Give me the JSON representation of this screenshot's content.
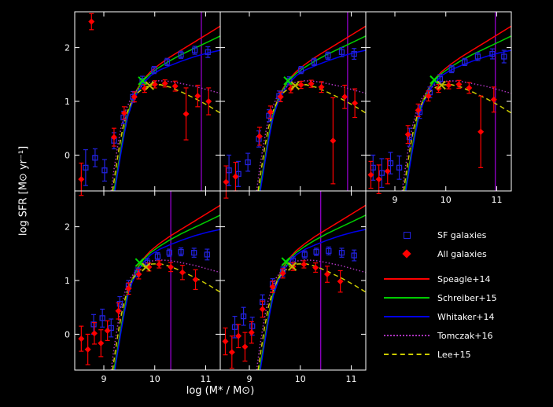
{
  "axes": {
    "xlabel": "log (M* / M⊙)",
    "ylabel": "log SFR [M⊙ yr⁻¹]"
  },
  "colors": {
    "background": "#000000",
    "axes": "#ffffff",
    "square_marker": "#2222dd",
    "diamond_marker": "#ff0000",
    "line_red": "#ff0000",
    "line_green": "#00cc00",
    "line_blue": "#0000ee",
    "line_dotted": "#aa33bb",
    "line_dashed": "#cccc00",
    "vline": "#8800bb",
    "cross_green": "#00dd00",
    "cross_yellow": "#bbbb00"
  },
  "legend": {
    "entries": [
      {
        "kind": "marker",
        "shape": "square",
        "color": "square_marker",
        "label": "SF galaxies"
      },
      {
        "kind": "marker",
        "shape": "diamond",
        "color": "diamond_marker",
        "label": "All galaxies"
      },
      {
        "kind": "line",
        "dash": "solid",
        "color": "line_red",
        "label": "Speagle+14"
      },
      {
        "kind": "line",
        "dash": "solid",
        "color": "line_green",
        "label": "Schreiber+15"
      },
      {
        "kind": "line",
        "dash": "solid",
        "color": "line_blue",
        "label": "Whitaker+14"
      },
      {
        "kind": "line",
        "dash": "dotted",
        "color": "line_dotted",
        "label": "Tomczak+16"
      },
      {
        "kind": "line",
        "dash": "dashed",
        "color": "line_dashed",
        "label": "Lee+15"
      }
    ]
  },
  "chart_data": {
    "type": "line",
    "title": "",
    "coords": "normalized panel coordinates (0-1), origin bottom-left of each panel",
    "xlabel": "log (M* / M⊙)",
    "ylabel": "log SFR [M⊙ yr⁻¹]",
    "x_ticks": [
      {
        "pos": 0.2,
        "label": "9"
      },
      {
        "pos": 0.55,
        "label": "10"
      },
      {
        "pos": 0.9,
        "label": "11"
      }
    ],
    "y_ticks": [
      {
        "pos": 0.2,
        "label": "0"
      },
      {
        "pos": 0.5,
        "label": "1"
      },
      {
        "pos": 0.8,
        "label": "2"
      }
    ],
    "model_curves": {
      "red": [
        [
          0.27,
          0.0
        ],
        [
          0.29,
          0.1
        ],
        [
          0.31,
          0.2
        ],
        [
          0.335,
          0.32
        ],
        [
          0.36,
          0.42
        ],
        [
          0.39,
          0.5
        ],
        [
          0.43,
          0.57
        ],
        [
          0.47,
          0.62
        ],
        [
          0.52,
          0.665
        ],
        [
          0.58,
          0.705
        ],
        [
          0.65,
          0.745
        ],
        [
          0.73,
          0.785
        ],
        [
          0.82,
          0.83
        ],
        [
          0.91,
          0.875
        ],
        [
          1.0,
          0.92
        ]
      ],
      "green": [
        [
          0.27,
          0.0
        ],
        [
          0.29,
          0.095
        ],
        [
          0.31,
          0.195
        ],
        [
          0.335,
          0.315
        ],
        [
          0.36,
          0.415
        ],
        [
          0.39,
          0.495
        ],
        [
          0.43,
          0.565
        ],
        [
          0.47,
          0.615
        ],
        [
          0.52,
          0.655
        ],
        [
          0.58,
          0.69
        ],
        [
          0.65,
          0.725
        ],
        [
          0.73,
          0.76
        ],
        [
          0.82,
          0.795
        ],
        [
          0.91,
          0.83
        ],
        [
          1.0,
          0.865
        ]
      ],
      "blue": [
        [
          0.275,
          0.0
        ],
        [
          0.295,
          0.1
        ],
        [
          0.315,
          0.2
        ],
        [
          0.34,
          0.315
        ],
        [
          0.365,
          0.415
        ],
        [
          0.395,
          0.49
        ],
        [
          0.435,
          0.555
        ],
        [
          0.475,
          0.605
        ],
        [
          0.525,
          0.645
        ],
        [
          0.585,
          0.675
        ],
        [
          0.655,
          0.7
        ],
        [
          0.735,
          0.725
        ],
        [
          0.825,
          0.75
        ],
        [
          0.915,
          0.77
        ],
        [
          1.0,
          0.785
        ]
      ],
      "dotted": [
        [
          0.25,
          0.0
        ],
        [
          0.27,
          0.12
        ],
        [
          0.295,
          0.25
        ],
        [
          0.32,
          0.36
        ],
        [
          0.35,
          0.45
        ],
        [
          0.385,
          0.515
        ],
        [
          0.425,
          0.56
        ],
        [
          0.47,
          0.59
        ],
        [
          0.52,
          0.608
        ],
        [
          0.58,
          0.615
        ],
        [
          0.65,
          0.612
        ],
        [
          0.73,
          0.6
        ],
        [
          0.82,
          0.585
        ],
        [
          0.91,
          0.565
        ],
        [
          1.0,
          0.545
        ]
      ],
      "dashed": [
        [
          0.26,
          0.0
        ],
        [
          0.28,
          0.11
        ],
        [
          0.305,
          0.24
        ],
        [
          0.33,
          0.35
        ],
        [
          0.36,
          0.44
        ],
        [
          0.395,
          0.505
        ],
        [
          0.435,
          0.55
        ],
        [
          0.48,
          0.578
        ],
        [
          0.53,
          0.592
        ],
        [
          0.59,
          0.593
        ],
        [
          0.66,
          0.578
        ],
        [
          0.74,
          0.55
        ],
        [
          0.83,
          0.515
        ],
        [
          0.92,
          0.475
        ],
        [
          1.0,
          0.435
        ]
      ]
    },
    "panels": [
      {
        "name": "top-left",
        "show_x_labels": false,
        "show_y_labels": true,
        "vline": 0.87,
        "cross_green": [
          0.465,
          0.615
        ],
        "cross_yellow": [
          0.515,
          0.588
        ],
        "squares": [
          [
            0.075,
            0.13,
            0.1
          ],
          [
            0.14,
            0.185,
            0.05
          ],
          [
            0.205,
            0.115,
            0.06
          ],
          [
            0.27,
            0.28,
            0.045
          ],
          [
            0.335,
            0.41,
            0.035
          ],
          [
            0.4,
            0.525,
            0.03
          ],
          [
            0.465,
            0.615,
            0.025
          ],
          [
            0.545,
            0.675,
            0.02
          ],
          [
            0.635,
            0.72,
            0.02
          ],
          [
            0.73,
            0.76,
            0.02
          ],
          [
            0.825,
            0.785,
            0.022
          ],
          [
            0.915,
            0.775,
            0.03
          ]
        ],
        "diamonds": [
          [
            0.045,
            0.065,
            0.09
          ],
          [
            0.115,
            0.945,
            0.045
          ],
          [
            0.27,
            0.3,
            0.05
          ],
          [
            0.34,
            0.435,
            0.035
          ],
          [
            0.41,
            0.525,
            0.028
          ],
          [
            0.48,
            0.572,
            0.022
          ],
          [
            0.55,
            0.595,
            0.02
          ],
          [
            0.62,
            0.6,
            0.02
          ],
          [
            0.69,
            0.585,
            0.028
          ],
          [
            0.765,
            0.43,
            0.145
          ],
          [
            0.845,
            0.53,
            0.06
          ],
          [
            0.92,
            0.5,
            0.075
          ]
        ]
      },
      {
        "name": "top-middle",
        "show_x_labels": false,
        "show_y_labels": false,
        "vline": 0.875,
        "cross_green": [
          0.465,
          0.615
        ],
        "cross_yellow": [
          0.515,
          0.588
        ],
        "squares": [
          [
            0.06,
            0.115,
            0.085
          ],
          [
            0.125,
            0.095,
            0.07
          ],
          [
            0.19,
            0.16,
            0.05
          ],
          [
            0.265,
            0.29,
            0.045
          ],
          [
            0.335,
            0.42,
            0.033
          ],
          [
            0.405,
            0.53,
            0.028
          ],
          [
            0.475,
            0.615,
            0.022
          ],
          [
            0.555,
            0.675,
            0.02
          ],
          [
            0.645,
            0.72,
            0.02
          ],
          [
            0.74,
            0.755,
            0.02
          ],
          [
            0.835,
            0.775,
            0.025
          ],
          [
            0.92,
            0.765,
            0.03
          ]
        ],
        "diamonds": [
          [
            0.04,
            0.05,
            0.09
          ],
          [
            0.105,
            0.08,
            0.08
          ],
          [
            0.27,
            0.305,
            0.05
          ],
          [
            0.345,
            0.44,
            0.034
          ],
          [
            0.415,
            0.525,
            0.027
          ],
          [
            0.485,
            0.57,
            0.022
          ],
          [
            0.555,
            0.592,
            0.02
          ],
          [
            0.625,
            0.598,
            0.02
          ],
          [
            0.695,
            0.58,
            0.03
          ],
          [
            0.775,
            0.28,
            0.24
          ],
          [
            0.855,
            0.525,
            0.065
          ],
          [
            0.925,
            0.49,
            0.08
          ]
        ]
      },
      {
        "name": "top-right",
        "show_x_labels": true,
        "show_y_labels": false,
        "vline": 0.89,
        "cross_green": [
          0.47,
          0.62
        ],
        "cross_yellow": [
          0.52,
          0.59
        ],
        "squares": [
          [
            0.05,
            0.13,
            0.07
          ],
          [
            0.11,
            0.1,
            0.08
          ],
          [
            0.17,
            0.155,
            0.06
          ],
          [
            0.23,
            0.13,
            0.065
          ],
          [
            0.3,
            0.3,
            0.05
          ],
          [
            0.37,
            0.44,
            0.035
          ],
          [
            0.44,
            0.55,
            0.03
          ],
          [
            0.51,
            0.625,
            0.025
          ],
          [
            0.59,
            0.68,
            0.02
          ],
          [
            0.68,
            0.72,
            0.02
          ],
          [
            0.77,
            0.75,
            0.022
          ],
          [
            0.87,
            0.765,
            0.028
          ],
          [
            0.95,
            0.75,
            0.035
          ]
        ],
        "diamonds": [
          [
            0.035,
            0.09,
            0.075
          ],
          [
            0.09,
            0.065,
            0.08
          ],
          [
            0.15,
            0.11,
            0.07
          ],
          [
            0.29,
            0.315,
            0.05
          ],
          [
            0.36,
            0.45,
            0.035
          ],
          [
            0.43,
            0.53,
            0.028
          ],
          [
            0.5,
            0.572,
            0.022
          ],
          [
            0.57,
            0.59,
            0.02
          ],
          [
            0.64,
            0.595,
            0.022
          ],
          [
            0.71,
            0.575,
            0.03
          ],
          [
            0.79,
            0.33,
            0.2
          ],
          [
            0.88,
            0.51,
            0.07
          ]
        ]
      },
      {
        "name": "bottom-left",
        "show_x_labels": true,
        "show_y_labels": true,
        "vline": 0.66,
        "cross_green": [
          0.445,
          0.6
        ],
        "cross_yellow": [
          0.49,
          0.575
        ],
        "squares": [
          [
            0.13,
            0.255,
            0.055
          ],
          [
            0.19,
            0.29,
            0.05
          ],
          [
            0.25,
            0.235,
            0.05
          ],
          [
            0.31,
            0.37,
            0.04
          ],
          [
            0.37,
            0.47,
            0.03
          ],
          [
            0.43,
            0.545,
            0.025
          ],
          [
            0.5,
            0.6,
            0.022
          ],
          [
            0.57,
            0.635,
            0.02
          ],
          [
            0.65,
            0.655,
            0.02
          ],
          [
            0.73,
            0.66,
            0.022
          ],
          [
            0.82,
            0.655,
            0.025
          ],
          [
            0.91,
            0.645,
            0.03
          ]
        ],
        "diamonds": [
          [
            0.045,
            0.175,
            0.07
          ],
          [
            0.09,
            0.115,
            0.085
          ],
          [
            0.135,
            0.205,
            0.06
          ],
          [
            0.18,
            0.15,
            0.075
          ],
          [
            0.225,
            0.22,
            0.055
          ],
          [
            0.3,
            0.33,
            0.045
          ],
          [
            0.37,
            0.455,
            0.032
          ],
          [
            0.44,
            0.535,
            0.026
          ],
          [
            0.51,
            0.575,
            0.022
          ],
          [
            0.58,
            0.59,
            0.02
          ],
          [
            0.66,
            0.575,
            0.025
          ],
          [
            0.74,
            0.545,
            0.04
          ],
          [
            0.83,
            0.505,
            0.055
          ]
        ]
      },
      {
        "name": "bottom-middle",
        "show_x_labels": true,
        "show_y_labels": false,
        "vline": 0.69,
        "cross_green": [
          0.45,
          0.605
        ],
        "cross_yellow": [
          0.495,
          0.578
        ],
        "squares": [
          [
            0.1,
            0.24,
            0.06
          ],
          [
            0.16,
            0.3,
            0.05
          ],
          [
            0.22,
            0.245,
            0.05
          ],
          [
            0.29,
            0.38,
            0.04
          ],
          [
            0.36,
            0.48,
            0.03
          ],
          [
            0.43,
            0.55,
            0.025
          ],
          [
            0.5,
            0.61,
            0.022
          ],
          [
            0.58,
            0.645,
            0.02
          ],
          [
            0.66,
            0.66,
            0.02
          ],
          [
            0.745,
            0.665,
            0.022
          ],
          [
            0.835,
            0.655,
            0.025
          ],
          [
            0.92,
            0.64,
            0.03
          ]
        ],
        "diamonds": [
          [
            0.035,
            0.16,
            0.075
          ],
          [
            0.08,
            0.1,
            0.09
          ],
          [
            0.125,
            0.19,
            0.065
          ],
          [
            0.17,
            0.13,
            0.08
          ],
          [
            0.215,
            0.21,
            0.06
          ],
          [
            0.29,
            0.34,
            0.045
          ],
          [
            0.36,
            0.465,
            0.032
          ],
          [
            0.43,
            0.54,
            0.026
          ],
          [
            0.5,
            0.578,
            0.022
          ],
          [
            0.575,
            0.59,
            0.02
          ],
          [
            0.655,
            0.572,
            0.026
          ],
          [
            0.735,
            0.535,
            0.045
          ],
          [
            0.825,
            0.495,
            0.06
          ]
        ]
      }
    ]
  }
}
